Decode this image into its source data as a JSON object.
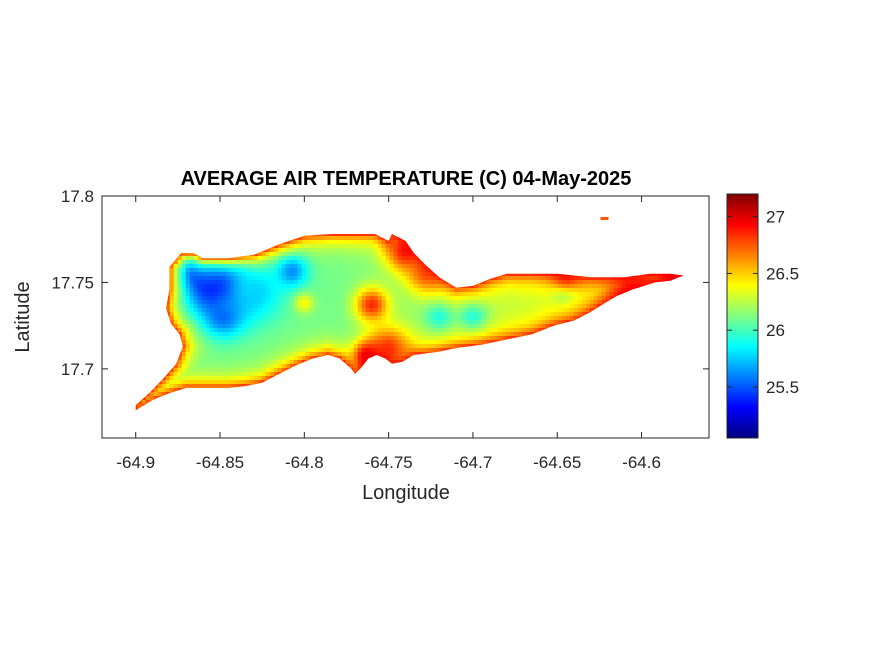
{
  "chart_data": {
    "type": "heatmap",
    "title": "AVERAGE AIR TEMPERATURE (C) 04-May-2025",
    "xlabel": "Longitude",
    "ylabel": "Latitude",
    "xlim": [
      -64.92,
      -64.56
    ],
    "ylim": [
      17.66,
      17.8
    ],
    "x_ticks": [
      -64.9,
      -64.85,
      -64.8,
      -64.75,
      -64.7,
      -64.65,
      -64.6
    ],
    "x_tick_labels": [
      "-64.9",
      "-64.85",
      "-64.8",
      "-64.75",
      "-64.7",
      "-64.65",
      "-64.6"
    ],
    "y_ticks": [
      17.7,
      17.75,
      17.8
    ],
    "y_tick_labels": [
      "17.7",
      "17.75",
      "17.8"
    ],
    "colorbar": {
      "colormap": "jet",
      "range": [
        25.05,
        27.2
      ],
      "ticks": [
        25.5,
        26,
        26.5,
        27
      ],
      "tick_labels": [
        "25.5",
        "26",
        "26.5",
        "27"
      ]
    },
    "island_outline_lonlat": [
      [
        -64.9,
        17.679
      ],
      [
        -64.892,
        17.686
      ],
      [
        -64.884,
        17.694
      ],
      [
        -64.876,
        17.703
      ],
      [
        -64.872,
        17.713
      ],
      [
        -64.874,
        17.72
      ],
      [
        -64.879,
        17.726
      ],
      [
        -64.882,
        17.735
      ],
      [
        -64.88,
        17.746
      ],
      [
        -64.88,
        17.759
      ],
      [
        -64.873,
        17.767
      ],
      [
        -64.866,
        17.767
      ],
      [
        -64.86,
        17.764
      ],
      [
        -64.845,
        17.764
      ],
      [
        -64.83,
        17.766
      ],
      [
        -64.815,
        17.772
      ],
      [
        -64.8,
        17.777
      ],
      [
        -64.784,
        17.778
      ],
      [
        -64.768,
        17.778
      ],
      [
        -64.758,
        17.778
      ],
      [
        -64.75,
        17.774
      ],
      [
        -64.748,
        17.778
      ],
      [
        -64.74,
        17.774
      ],
      [
        -64.735,
        17.767
      ],
      [
        -64.728,
        17.76
      ],
      [
        -64.72,
        17.753
      ],
      [
        -64.71,
        17.747
      ],
      [
        -64.7,
        17.748
      ],
      [
        -64.69,
        17.752
      ],
      [
        -64.68,
        17.755
      ],
      [
        -64.668,
        17.755
      ],
      [
        -64.65,
        17.755
      ],
      [
        -64.63,
        17.753
      ],
      [
        -64.61,
        17.753
      ],
      [
        -64.595,
        17.755
      ],
      [
        -64.583,
        17.755
      ],
      [
        -64.575,
        17.754
      ],
      [
        -64.583,
        17.751
      ],
      [
        -64.592,
        17.75
      ],
      [
        -64.605,
        17.746
      ],
      [
        -64.615,
        17.742
      ],
      [
        -64.622,
        17.738
      ],
      [
        -64.63,
        17.733
      ],
      [
        -64.64,
        17.728
      ],
      [
        -64.652,
        17.725
      ],
      [
        -64.665,
        17.72
      ],
      [
        -64.68,
        17.717
      ],
      [
        -64.695,
        17.714
      ],
      [
        -64.71,
        17.712
      ],
      [
        -64.72,
        17.71
      ],
      [
        -64.735,
        17.708
      ],
      [
        -64.742,
        17.704
      ],
      [
        -64.748,
        17.703
      ],
      [
        -64.752,
        17.706
      ],
      [
        -64.757,
        17.708
      ],
      [
        -64.762,
        17.706
      ],
      [
        -64.766,
        17.701
      ],
      [
        -64.77,
        17.697
      ],
      [
        -64.772,
        17.7
      ],
      [
        -64.779,
        17.706
      ],
      [
        -64.786,
        17.708
      ],
      [
        -64.795,
        17.706
      ],
      [
        -64.805,
        17.702
      ],
      [
        -64.815,
        17.697
      ],
      [
        -64.825,
        17.692
      ],
      [
        -64.835,
        17.69
      ],
      [
        -64.845,
        17.689
      ],
      [
        -64.858,
        17.689
      ],
      [
        -64.87,
        17.689
      ],
      [
        -64.88,
        17.686
      ],
      [
        -64.89,
        17.682
      ],
      [
        -64.9,
        17.676
      ]
    ],
    "islet_lonlat": [
      -64.622,
      17.787
    ],
    "temperature_features": [
      {
        "lon": -64.85,
        "lat": 17.75,
        "value": 25.15,
        "sigma": 0.014
      },
      {
        "lon": -64.86,
        "lat": 17.757,
        "value": 25.35,
        "sigma": 0.01
      },
      {
        "lon": -64.848,
        "lat": 17.731,
        "value": 25.5,
        "sigma": 0.008
      },
      {
        "lon": -64.808,
        "lat": 17.757,
        "value": 25.55,
        "sigma": 0.007
      },
      {
        "lon": -64.83,
        "lat": 17.745,
        "value": 25.75,
        "sigma": 0.012
      },
      {
        "lon": -64.72,
        "lat": 17.73,
        "value": 25.9,
        "sigma": 0.006
      },
      {
        "lon": -64.7,
        "lat": 17.73,
        "value": 25.9,
        "sigma": 0.006
      },
      {
        "lon": -64.646,
        "lat": 17.746,
        "value": 25.95,
        "sigma": 0.005
      },
      {
        "lon": -64.76,
        "lat": 17.737,
        "value": 26.85,
        "sigma": 0.007
      },
      {
        "lon": -64.762,
        "lat": 17.707,
        "value": 27.15,
        "sigma": 0.006
      },
      {
        "lon": -64.75,
        "lat": 17.712,
        "value": 26.8,
        "sigma": 0.009
      },
      {
        "lon": -64.74,
        "lat": 17.768,
        "value": 26.9,
        "sigma": 0.008
      },
      {
        "lon": -64.728,
        "lat": 17.755,
        "value": 26.7,
        "sigma": 0.008
      },
      {
        "lon": -64.605,
        "lat": 17.745,
        "value": 26.9,
        "sigma": 0.01
      },
      {
        "lon": -64.58,
        "lat": 17.754,
        "value": 27.05,
        "sigma": 0.007
      },
      {
        "lon": -64.645,
        "lat": 17.754,
        "value": 26.8,
        "sigma": 0.007
      },
      {
        "lon": -64.8,
        "lat": 17.738,
        "value": 26.4,
        "sigma": 0.004
      }
    ]
  }
}
